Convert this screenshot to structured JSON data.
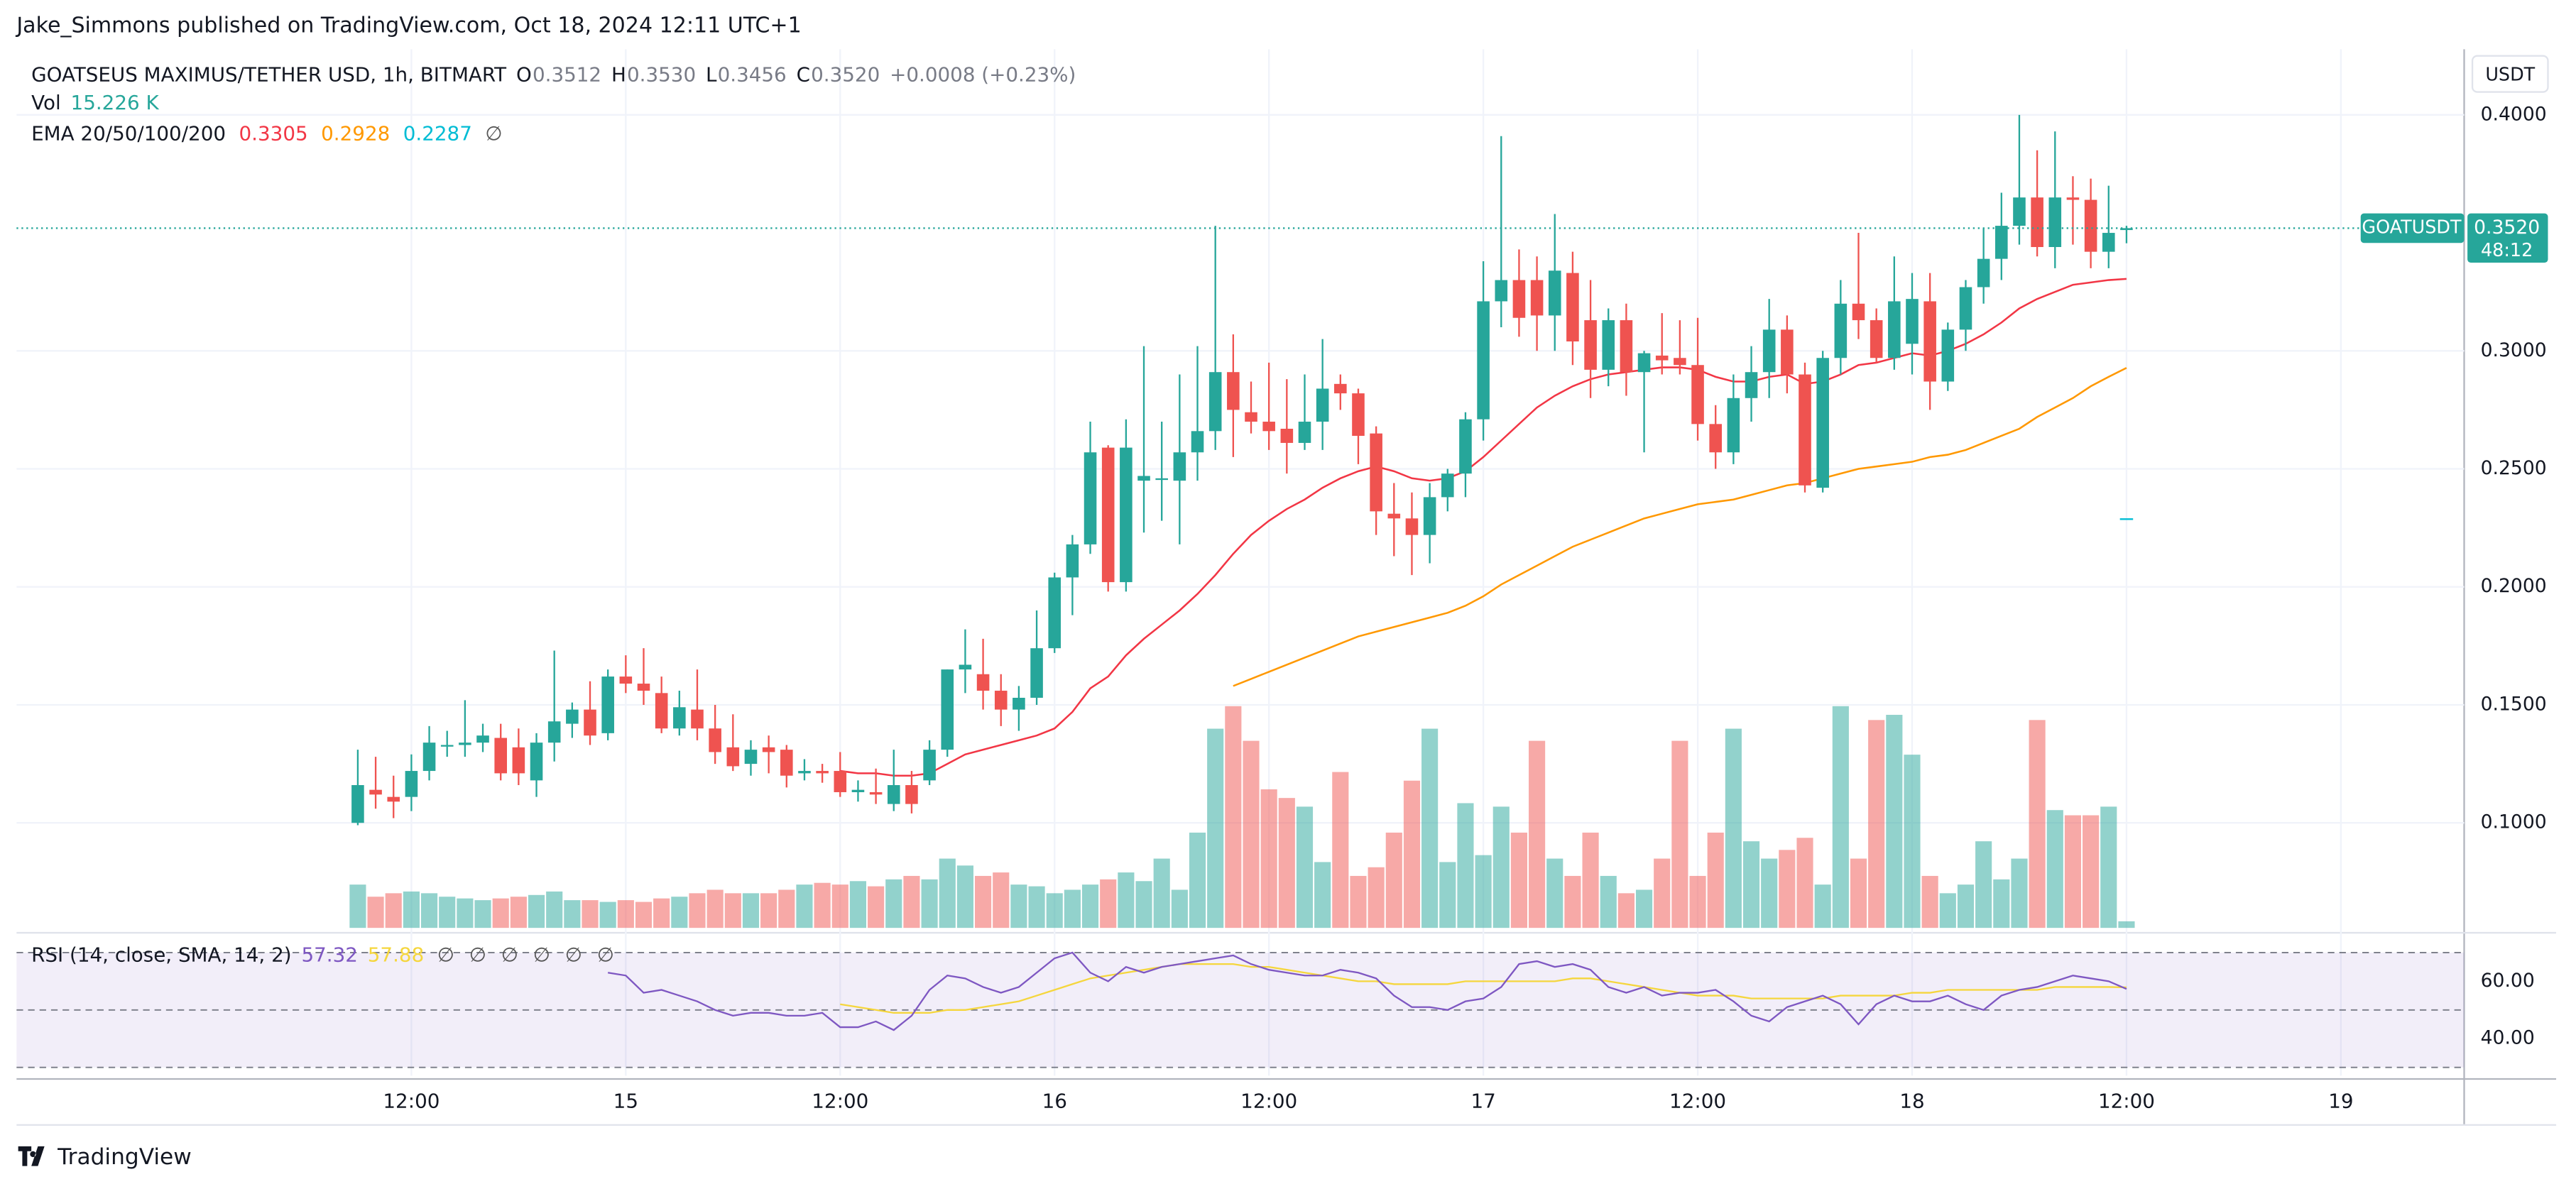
{
  "header": {
    "publisher": "Jake_Simmons published on TradingView.com, Oct 18, 2024 12:11 UTC+1",
    "brand": "TradingView"
  },
  "chart_data": {
    "type": "candlestick",
    "symbol": "GOATSEUS MAXIMUS/TETHER USD, 1h, BITMART",
    "ohlc_letters": [
      "O",
      "H",
      "L",
      "C"
    ],
    "ohlc_labels": [
      "0.3512",
      "0.3530",
      "0.3456",
      "0.3520"
    ],
    "change_label": "+0.0008 (+0.23%)",
    "currency": "USDT",
    "ticker": "GOATUSDT",
    "countdown": "48:12",
    "up_color": "#26a69a",
    "down_color": "#ef5350",
    "x": [
      9,
      10,
      11,
      12,
      13,
      14,
      15,
      16,
      17,
      18,
      19,
      20,
      21,
      22,
      23,
      24,
      25,
      26,
      27,
      28,
      29,
      30,
      31,
      32,
      33,
      34,
      35,
      36,
      37,
      38,
      39,
      40,
      41,
      42,
      43,
      44,
      45,
      46,
      47,
      48,
      49,
      50,
      51,
      52,
      53,
      54,
      55,
      56,
      57,
      58,
      59,
      60,
      61,
      62,
      63,
      64,
      65,
      66,
      67,
      68,
      69,
      70,
      71,
      72,
      73,
      74,
      75,
      76,
      77,
      78,
      79,
      80,
      81,
      82,
      83,
      84,
      85,
      86,
      87,
      88,
      89,
      90,
      91,
      92,
      93,
      94,
      95,
      96,
      97,
      98,
      99,
      100,
      101,
      102,
      103,
      104,
      105,
      106,
      107,
      108
    ],
    "candles": [
      [
        0.1,
        0.131,
        0.099,
        0.116
      ],
      [
        0.114,
        0.128,
        0.106,
        0.112
      ],
      [
        0.111,
        0.12,
        0.102,
        0.109
      ],
      [
        0.111,
        0.129,
        0.105,
        0.122
      ],
      [
        0.122,
        0.141,
        0.118,
        0.134
      ],
      [
        0.133,
        0.139,
        0.128,
        0.133
      ],
      [
        0.133,
        0.152,
        0.128,
        0.134
      ],
      [
        0.134,
        0.142,
        0.13,
        0.137
      ],
      [
        0.136,
        0.142,
        0.118,
        0.121
      ],
      [
        0.132,
        0.14,
        0.116,
        0.121
      ],
      [
        0.118,
        0.138,
        0.111,
        0.134
      ],
      [
        0.134,
        0.173,
        0.126,
        0.143
      ],
      [
        0.142,
        0.151,
        0.136,
        0.148
      ],
      [
        0.148,
        0.16,
        0.133,
        0.137
      ],
      [
        0.138,
        0.165,
        0.135,
        0.162
      ],
      [
        0.162,
        0.171,
        0.155,
        0.159
      ],
      [
        0.159,
        0.174,
        0.15,
        0.156
      ],
      [
        0.155,
        0.162,
        0.138,
        0.14
      ],
      [
        0.14,
        0.156,
        0.137,
        0.149
      ],
      [
        0.148,
        0.165,
        0.135,
        0.14
      ],
      [
        0.14,
        0.15,
        0.125,
        0.13
      ],
      [
        0.132,
        0.146,
        0.122,
        0.124
      ],
      [
        0.125,
        0.135,
        0.12,
        0.131
      ],
      [
        0.132,
        0.137,
        0.121,
        0.13
      ],
      [
        0.131,
        0.133,
        0.115,
        0.12
      ],
      [
        0.121,
        0.127,
        0.118,
        0.122
      ],
      [
        0.122,
        0.125,
        0.117,
        0.121
      ],
      [
        0.122,
        0.13,
        0.111,
        0.113
      ],
      [
        0.113,
        0.118,
        0.109,
        0.114
      ],
      [
        0.113,
        0.123,
        0.108,
        0.112
      ],
      [
        0.108,
        0.131,
        0.105,
        0.116
      ],
      [
        0.116,
        0.122,
        0.104,
        0.108
      ],
      [
        0.118,
        0.135,
        0.116,
        0.131
      ],
      [
        0.131,
        0.165,
        0.128,
        0.165
      ],
      [
        0.165,
        0.182,
        0.155,
        0.167
      ],
      [
        0.163,
        0.178,
        0.148,
        0.156
      ],
      [
        0.156,
        0.163,
        0.141,
        0.148
      ],
      [
        0.148,
        0.158,
        0.139,
        0.153
      ],
      [
        0.153,
        0.19,
        0.15,
        0.174
      ],
      [
        0.174,
        0.206,
        0.172,
        0.204
      ],
      [
        0.204,
        0.222,
        0.188,
        0.218
      ],
      [
        0.218,
        0.27,
        0.214,
        0.257
      ],
      [
        0.259,
        0.26,
        0.198,
        0.202
      ],
      [
        0.202,
        0.271,
        0.198,
        0.259
      ],
      [
        0.245,
        0.302,
        0.223,
        0.247
      ],
      [
        0.246,
        0.27,
        0.228,
        0.246
      ],
      [
        0.245,
        0.29,
        0.218,
        0.257
      ],
      [
        0.257,
        0.302,
        0.245,
        0.266
      ],
      [
        0.266,
        0.353,
        0.258,
        0.291
      ],
      [
        0.291,
        0.307,
        0.255,
        0.275
      ],
      [
        0.274,
        0.287,
        0.265,
        0.27
      ],
      [
        0.27,
        0.295,
        0.258,
        0.266
      ],
      [
        0.267,
        0.288,
        0.248,
        0.261
      ],
      [
        0.261,
        0.29,
        0.258,
        0.27
      ],
      [
        0.27,
        0.305,
        0.258,
        0.284
      ],
      [
        0.286,
        0.29,
        0.275,
        0.282
      ],
      [
        0.282,
        0.284,
        0.252,
        0.264
      ],
      [
        0.265,
        0.268,
        0.222,
        0.232
      ],
      [
        0.231,
        0.244,
        0.213,
        0.229
      ],
      [
        0.229,
        0.24,
        0.205,
        0.222
      ],
      [
        0.222,
        0.244,
        0.21,
        0.238
      ],
      [
        0.238,
        0.25,
        0.232,
        0.248
      ],
      [
        0.248,
        0.274,
        0.238,
        0.271
      ],
      [
        0.271,
        0.338,
        0.262,
        0.321
      ],
      [
        0.321,
        0.391,
        0.31,
        0.33
      ],
      [
        0.33,
        0.343,
        0.306,
        0.314
      ],
      [
        0.33,
        0.34,
        0.3,
        0.315
      ],
      [
        0.315,
        0.358,
        0.3,
        0.334
      ],
      [
        0.333,
        0.342,
        0.294,
        0.304
      ],
      [
        0.313,
        0.33,
        0.28,
        0.292
      ],
      [
        0.292,
        0.318,
        0.285,
        0.313
      ],
      [
        0.313,
        0.32,
        0.281,
        0.291
      ],
      [
        0.291,
        0.3,
        0.257,
        0.299
      ],
      [
        0.298,
        0.316,
        0.29,
        0.296
      ],
      [
        0.297,
        0.313,
        0.29,
        0.294
      ],
      [
        0.294,
        0.314,
        0.262,
        0.269
      ],
      [
        0.269,
        0.277,
        0.25,
        0.257
      ],
      [
        0.257,
        0.29,
        0.252,
        0.28
      ],
      [
        0.28,
        0.302,
        0.27,
        0.291
      ],
      [
        0.291,
        0.322,
        0.28,
        0.309
      ],
      [
        0.309,
        0.315,
        0.282,
        0.29
      ],
      [
        0.29,
        0.295,
        0.24,
        0.243
      ],
      [
        0.242,
        0.3,
        0.24,
        0.297
      ],
      [
        0.297,
        0.33,
        0.29,
        0.32
      ],
      [
        0.32,
        0.35,
        0.305,
        0.313
      ],
      [
        0.313,
        0.318,
        0.295,
        0.297
      ],
      [
        0.297,
        0.34,
        0.292,
        0.321
      ],
      [
        0.303,
        0.333,
        0.29,
        0.322
      ],
      [
        0.321,
        0.333,
        0.275,
        0.287
      ],
      [
        0.287,
        0.312,
        0.283,
        0.309
      ],
      [
        0.309,
        0.33,
        0.3,
        0.327
      ],
      [
        0.327,
        0.352,
        0.32,
        0.339
      ],
      [
        0.339,
        0.367,
        0.33,
        0.353
      ],
      [
        0.353,
        0.4,
        0.345,
        0.365
      ],
      [
        0.365,
        0.385,
        0.34,
        0.344
      ],
      [
        0.344,
        0.393,
        0.335,
        0.365
      ],
      [
        0.365,
        0.374,
        0.345,
        0.364
      ],
      [
        0.364,
        0.373,
        0.335,
        0.342
      ],
      [
        0.342,
        0.37,
        0.335,
        0.35
      ],
      [
        0.3512,
        0.353,
        0.3456,
        0.352
      ]
    ],
    "volume_title": "Vol",
    "volume_label": "15.226 K",
    "volumes": [
      100,
      72,
      80,
      84,
      80,
      72,
      68,
      64,
      68,
      72,
      76,
      84,
      64,
      64,
      60,
      64,
      60,
      68,
      72,
      80,
      88,
      80,
      80,
      80,
      88,
      100,
      104,
      100,
      108,
      96,
      112,
      120,
      112,
      160,
      144,
      120,
      128,
      100,
      96,
      80,
      88,
      100,
      112,
      128,
      108,
      160,
      88,
      220,
      460,
      512,
      432,
      320,
      300,
      280,
      152,
      360,
      120,
      140,
      220,
      340,
      460,
      152,
      288,
      168,
      280,
      220,
      432,
      160,
      120,
      220,
      120,
      80,
      88,
      160,
      432,
      120,
      220,
      460,
      200,
      160,
      180,
      208,
      100,
      512,
      160,
      480,
      492,
      400,
      120,
      80,
      100,
      200,
      112,
      160,
      480,
      272,
      260,
      260,
      280,
      15.226
    ],
    "ema_title": "EMA 20/50/100/200",
    "ema_hidden": "∅",
    "emas": [
      {
        "color": "#f23645",
        "values": [
          null,
          null,
          null,
          null,
          null,
          null,
          null,
          null,
          null,
          null,
          null,
          null,
          null,
          null,
          null,
          null,
          null,
          null,
          null,
          null,
          null,
          null,
          null,
          null,
          null,
          null,
          null,
          0.122,
          0.121,
          0.121,
          0.12,
          0.12,
          0.121,
          0.125,
          0.129,
          0.131,
          0.133,
          0.135,
          0.137,
          0.14,
          0.147,
          0.157,
          0.162,
          0.171,
          0.178,
          0.184,
          0.19,
          0.197,
          0.205,
          0.214,
          0.222,
          0.228,
          0.233,
          0.237,
          0.242,
          0.246,
          0.249,
          0.251,
          0.249,
          0.246,
          0.245,
          0.246,
          0.249,
          0.255,
          0.262,
          0.269,
          0.276,
          0.281,
          0.285,
          0.288,
          0.29,
          0.291,
          0.292,
          0.293,
          0.293,
          0.292,
          0.289,
          0.287,
          0.287,
          0.289,
          0.29,
          0.286,
          0.287,
          0.29,
          0.294,
          0.295,
          0.297,
          0.299,
          0.298,
          0.3,
          0.303,
          0.307,
          0.312,
          0.318,
          0.322,
          0.325,
          0.328,
          0.329,
          0.33,
          0.3305
        ]
      },
      {
        "color": "#ff9800",
        "values": [
          null,
          null,
          null,
          null,
          null,
          null,
          null,
          null,
          null,
          null,
          null,
          null,
          null,
          null,
          null,
          null,
          null,
          null,
          null,
          null,
          null,
          null,
          null,
          null,
          null,
          null,
          null,
          null,
          null,
          null,
          null,
          null,
          null,
          null,
          null,
          null,
          null,
          null,
          null,
          null,
          null,
          null,
          null,
          null,
          null,
          null,
          null,
          null,
          null,
          0.158,
          0.161,
          0.164,
          0.167,
          0.17,
          0.173,
          0.176,
          0.179,
          0.181,
          0.183,
          0.185,
          0.187,
          0.189,
          0.192,
          0.196,
          0.201,
          0.205,
          0.209,
          0.213,
          0.217,
          0.22,
          0.223,
          0.226,
          0.229,
          0.231,
          0.233,
          0.235,
          0.236,
          0.237,
          0.239,
          0.241,
          0.243,
          0.244,
          0.246,
          0.248,
          0.25,
          0.251,
          0.252,
          0.253,
          0.255,
          0.256,
          0.258,
          0.261,
          0.264,
          0.267,
          0.272,
          0.276,
          0.28,
          0.285,
          0.289,
          0.2928
        ]
      }
    ],
    "ema100": {
      "color": "#00bcd4",
      "value": 0.2287
    },
    "ylim": [
      0.0555,
      0.4278
    ],
    "yticks": [
      {
        "value": 0.1,
        "label": "0.1000"
      },
      {
        "value": 0.15,
        "label": "0.1500"
      },
      {
        "value": 0.2,
        "label": "0.2000"
      },
      {
        "value": 0.25,
        "label": "0.2500"
      },
      {
        "value": 0.3,
        "label": "0.3000"
      },
      {
        "value": 0.4,
        "label": "0.4000"
      }
    ],
    "xlim": [
      -10.1,
      126.9
    ],
    "xticks": [
      {
        "value": 12,
        "label": "12:00"
      },
      {
        "value": 24,
        "label": "15"
      },
      {
        "value": 36,
        "label": "12:00"
      },
      {
        "value": 48,
        "label": "16"
      },
      {
        "value": 60,
        "label": "12:00"
      },
      {
        "value": 72,
        "label": "17"
      },
      {
        "value": 84,
        "label": "12:00"
      },
      {
        "value": 96,
        "label": "18"
      },
      {
        "value": 108,
        "label": "12:00"
      },
      {
        "value": 120,
        "label": "19"
      }
    ],
    "grid": true,
    "rsi": {
      "title": "RSI (14, close, SMA, 14, 2)",
      "hidden": [
        "∅",
        "∅",
        "∅",
        "∅",
        "∅",
        "∅"
      ],
      "color": "#7e57c2",
      "ma_color": "#f5d63d",
      "values": [
        null,
        null,
        null,
        null,
        null,
        null,
        null,
        null,
        null,
        null,
        null,
        null,
        null,
        null,
        63,
        62,
        56,
        57,
        55,
        53,
        50,
        48,
        49,
        49,
        48,
        48,
        49,
        44,
        44,
        46,
        43,
        48,
        57,
        62,
        61,
        58,
        56,
        58,
        63,
        68,
        70,
        63,
        60,
        65,
        63,
        65,
        66,
        67,
        68,
        69,
        66,
        64,
        63,
        62,
        62,
        64,
        63,
        61,
        55,
        51,
        51,
        50,
        53,
        54,
        58,
        66,
        67,
        65,
        66,
        64,
        58,
        56,
        58,
        55,
        56,
        56,
        57,
        53,
        48,
        46,
        51,
        53,
        55,
        52,
        45,
        52,
        55,
        53,
        53,
        55,
        52,
        50,
        55,
        57,
        58,
        60,
        62,
        61,
        60,
        57.32
      ],
      "ma": [
        null,
        null,
        null,
        null,
        null,
        null,
        null,
        null,
        null,
        null,
        null,
        null,
        null,
        null,
        null,
        null,
        null,
        null,
        null,
        null,
        null,
        null,
        null,
        null,
        null,
        null,
        null,
        52,
        51,
        50,
        49,
        49,
        49,
        50,
        50,
        51,
        52,
        53,
        55,
        57,
        59,
        61,
        62,
        63,
        64,
        65,
        66,
        66,
        66,
        66,
        65,
        65,
        64,
        63,
        62,
        61,
        60,
        60,
        59,
        59,
        59,
        59,
        60,
        60,
        60,
        60,
        60,
        60,
        61,
        61,
        60,
        59,
        58,
        57,
        56,
        55,
        55,
        55,
        54,
        54,
        54,
        54,
        54,
        55,
        55,
        55,
        55,
        56,
        56,
        57,
        57,
        57,
        57,
        57,
        57,
        58,
        58,
        58,
        58,
        57.88
      ],
      "bands": [
        70,
        50,
        30
      ],
      "ylim": [
        27.1,
        74.6
      ],
      "yticks": [
        {
          "value": 60,
          "label": "60.00"
        },
        {
          "value": 40,
          "label": "40.00"
        }
      ]
    }
  }
}
